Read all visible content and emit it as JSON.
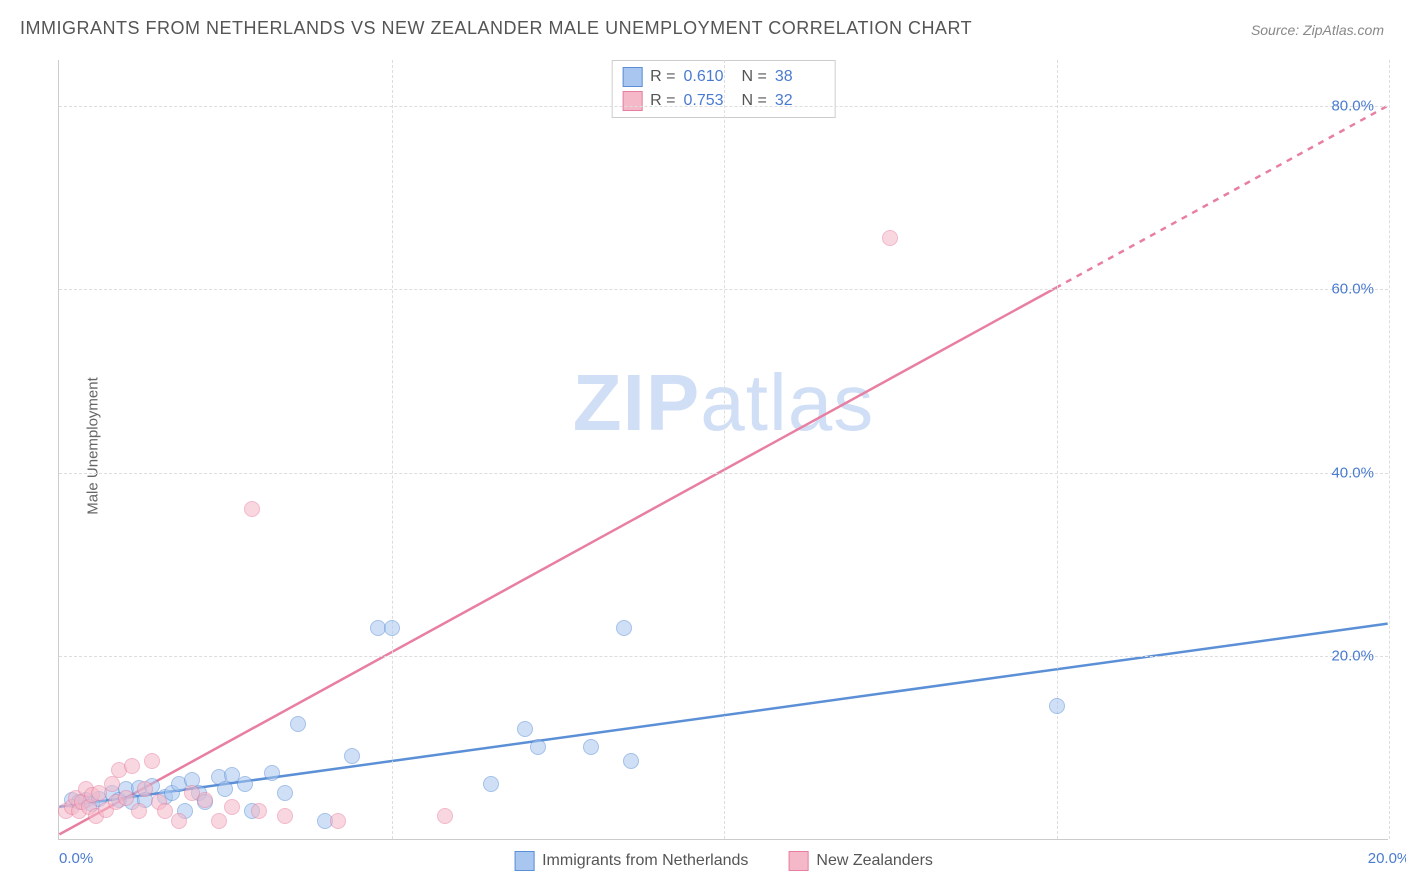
{
  "title": "IMMIGRANTS FROM NETHERLANDS VS NEW ZEALANDER MALE UNEMPLOYMENT CORRELATION CHART",
  "source": "Source: ZipAtlas.com",
  "y_axis_label": "Male Unemployment",
  "watermark_bold": "ZIP",
  "watermark_rest": "atlas",
  "chart": {
    "type": "scatter-with-trend",
    "background_color": "#ffffff",
    "grid_color": "#dddddd",
    "axis_color": "#cccccc",
    "text_color": "#666666",
    "tick_label_color": "#4a7bd0",
    "xlim": [
      0,
      20
    ],
    "ylim": [
      0,
      85
    ],
    "x_ticks": [
      0,
      20
    ],
    "x_tick_labels": [
      "0.0%",
      "20.0%"
    ],
    "y_ticks": [
      20,
      40,
      60,
      80
    ],
    "y_tick_labels": [
      "20.0%",
      "40.0%",
      "60.0%",
      "80.0%"
    ],
    "x_gridlines_at": [
      5,
      10,
      15,
      20
    ],
    "point_radius": 8,
    "point_opacity": 0.55,
    "series": [
      {
        "key": "netherlands",
        "label": "Immigrants from Netherlands",
        "color_fill": "#a8c6f0",
        "color_stroke": "#5b8fd6",
        "r_value": "0.610",
        "n_value": "38",
        "trend": {
          "x1": 0,
          "y1": 3.5,
          "x2": 20,
          "y2": 23.5,
          "width": 2.5,
          "dash_from_x": null
        },
        "points": [
          [
            0.2,
            4.2
          ],
          [
            0.3,
            4.0
          ],
          [
            0.4,
            4.2
          ],
          [
            0.5,
            3.8
          ],
          [
            0.6,
            4.4
          ],
          [
            0.8,
            5.0
          ],
          [
            0.9,
            4.2
          ],
          [
            1.0,
            5.4
          ],
          [
            1.1,
            4.0
          ],
          [
            1.2,
            5.6
          ],
          [
            1.3,
            4.2
          ],
          [
            1.4,
            5.8
          ],
          [
            1.6,
            4.6
          ],
          [
            1.7,
            5.0
          ],
          [
            1.8,
            6.0
          ],
          [
            1.9,
            3.0
          ],
          [
            2.0,
            6.4
          ],
          [
            2.1,
            5.0
          ],
          [
            2.2,
            4.0
          ],
          [
            2.4,
            6.8
          ],
          [
            2.5,
            5.4
          ],
          [
            2.6,
            7.0
          ],
          [
            2.8,
            6.0
          ],
          [
            2.9,
            3.0
          ],
          [
            3.2,
            7.2
          ],
          [
            3.4,
            5.0
          ],
          [
            3.6,
            12.5
          ],
          [
            4.0,
            2.0
          ],
          [
            4.4,
            9.0
          ],
          [
            4.8,
            23.0
          ],
          [
            5.0,
            23.0
          ],
          [
            6.5,
            6.0
          ],
          [
            7.0,
            12.0
          ],
          [
            7.2,
            10.0
          ],
          [
            8.0,
            10.0
          ],
          [
            8.5,
            23.0
          ],
          [
            8.6,
            8.5
          ],
          [
            15.0,
            14.5
          ]
        ]
      },
      {
        "key": "newzealand",
        "label": "New Zealanders",
        "color_fill": "#f5b8c8",
        "color_stroke": "#e87fa0",
        "r_value": "0.753",
        "n_value": "32",
        "trend": {
          "x1": 0,
          "y1": 0.5,
          "x2": 20,
          "y2": 80,
          "width": 2.5,
          "dash_from_x": 15
        },
        "points": [
          [
            0.1,
            3.0
          ],
          [
            0.2,
            3.5
          ],
          [
            0.25,
            4.5
          ],
          [
            0.3,
            3.0
          ],
          [
            0.35,
            4.0
          ],
          [
            0.4,
            5.5
          ],
          [
            0.45,
            3.5
          ],
          [
            0.5,
            4.8
          ],
          [
            0.55,
            2.5
          ],
          [
            0.6,
            5.0
          ],
          [
            0.7,
            3.2
          ],
          [
            0.8,
            6.0
          ],
          [
            0.85,
            4.0
          ],
          [
            0.9,
            7.5
          ],
          [
            1.0,
            4.5
          ],
          [
            1.1,
            8.0
          ],
          [
            1.2,
            3.0
          ],
          [
            1.3,
            5.5
          ],
          [
            1.4,
            8.5
          ],
          [
            1.5,
            4.0
          ],
          [
            1.6,
            3.0
          ],
          [
            1.8,
            2.0
          ],
          [
            2.0,
            5.0
          ],
          [
            2.2,
            4.2
          ],
          [
            2.4,
            2.0
          ],
          [
            2.6,
            3.5
          ],
          [
            2.9,
            36.0
          ],
          [
            3.0,
            3.0
          ],
          [
            3.4,
            2.5
          ],
          [
            4.2,
            2.0
          ],
          [
            5.8,
            2.5
          ],
          [
            12.5,
            65.5
          ]
        ]
      }
    ],
    "top_legend_labels": {
      "r": "R =",
      "n": "N ="
    }
  }
}
